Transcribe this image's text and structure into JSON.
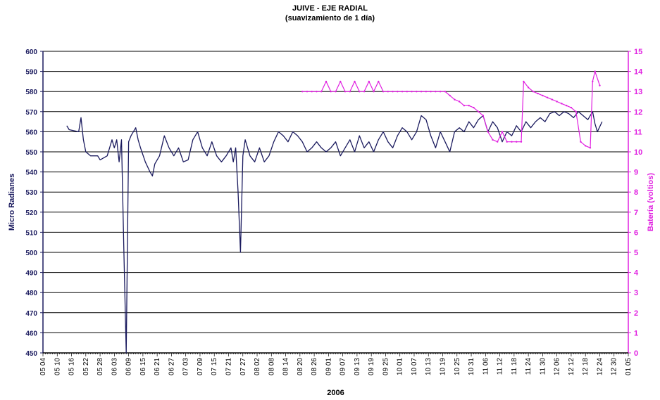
{
  "chart_data": {
    "type": "line",
    "title": "JUIVE - EJE RADIAL",
    "subtitle": "(suavizamiento de 1 día)",
    "xlabel": "2006",
    "ylabel": "Micro Radianes",
    "y2label": "Batería (voltios)",
    "ylim": [
      450,
      600
    ],
    "y2lim": [
      0,
      15
    ],
    "yticks": [
      450,
      460,
      470,
      480,
      490,
      500,
      510,
      520,
      530,
      540,
      550,
      560,
      570,
      580,
      590,
      600
    ],
    "y2ticks": [
      0,
      1,
      2,
      3,
      4,
      5,
      6,
      7,
      8,
      9,
      10,
      11,
      12,
      13,
      14,
      15
    ],
    "x_tick_labels": [
      "05 04",
      "05 10",
      "05 16",
      "05 22",
      "05 28",
      "06 03",
      "06 09",
      "06 15",
      "06 21",
      "06 27",
      "07 03",
      "07 09",
      "07 15",
      "07 21",
      "07 27",
      "08 02",
      "08 08",
      "08 14",
      "08 20",
      "08 26",
      "09 01",
      "09 07",
      "09 13",
      "09 19",
      "09 25",
      "10 01",
      "10 07",
      "10 13",
      "10 19",
      "10 25",
      "10 31",
      "11 06",
      "11 12",
      "11 18",
      "11 24",
      "11 30",
      "12 06",
      "12 12",
      "12 18",
      "12 24",
      "12 30",
      "01 05"
    ],
    "grid": "horizontal",
    "colors": {
      "series": "#1a1a5e",
      "battery": "#e020e0",
      "axis_left": "#1a1a5e",
      "axis_right": "#e020e0"
    },
    "series": [
      {
        "axis": "left",
        "points": [
          [
            "05 14",
            563
          ],
          [
            "05 15",
            561
          ],
          [
            "05 19",
            560
          ],
          [
            "05 20",
            567
          ],
          [
            "05 21",
            556
          ],
          [
            "05 22",
            550
          ],
          [
            "05 24",
            548
          ],
          [
            "05 27",
            548
          ],
          [
            "05 28",
            546
          ],
          [
            "05 31",
            548
          ],
          [
            "06 01",
            552
          ],
          [
            "06 02",
            556
          ],
          [
            "06 03",
            552
          ],
          [
            "06 04",
            556
          ],
          [
            "06 05",
            545
          ],
          [
            "06 06",
            556
          ],
          [
            "06 07",
            500
          ],
          [
            "06 08",
            450
          ],
          [
            "06 09",
            555
          ],
          [
            "06 10",
            558
          ],
          [
            "06 12",
            562
          ],
          [
            "06 13",
            556
          ],
          [
            "06 14",
            552
          ],
          [
            "06 16",
            545
          ],
          [
            "06 18",
            540
          ],
          [
            "06 19",
            538
          ],
          [
            "06 20",
            544
          ],
          [
            "06 22",
            548
          ],
          [
            "06 24",
            558
          ],
          [
            "06 26",
            552
          ],
          [
            "06 28",
            548
          ],
          [
            "06 30",
            552
          ],
          [
            "07 02",
            545
          ],
          [
            "07 04",
            546
          ],
          [
            "07 06",
            556
          ],
          [
            "07 08",
            560
          ],
          [
            "07 10",
            552
          ],
          [
            "07 12",
            548
          ],
          [
            "07 14",
            555
          ],
          [
            "07 16",
            548
          ],
          [
            "07 18",
            545
          ],
          [
            "07 20",
            548
          ],
          [
            "07 22",
            552
          ],
          [
            "07 23",
            545
          ],
          [
            "07 24",
            552
          ],
          [
            "07 25",
            530
          ],
          [
            "07 26",
            500
          ],
          [
            "07 27",
            548
          ],
          [
            "07 28",
            556
          ],
          [
            "07 30",
            548
          ],
          [
            "08 01",
            545
          ],
          [
            "08 03",
            552
          ],
          [
            "08 05",
            545
          ],
          [
            "08 07",
            548
          ],
          [
            "08 09",
            555
          ],
          [
            "08 11",
            560
          ],
          [
            "08 13",
            558
          ],
          [
            "08 15",
            555
          ],
          [
            "08 17",
            560
          ],
          [
            "08 19",
            558
          ],
          [
            "08 21",
            555
          ],
          [
            "08 23",
            550
          ],
          [
            "08 25",
            552
          ],
          [
            "08 27",
            555
          ],
          [
            "08 29",
            552
          ],
          [
            "08 31",
            550
          ],
          [
            "09 02",
            552
          ],
          [
            "09 04",
            555
          ],
          [
            "09 06",
            548
          ],
          [
            "09 08",
            552
          ],
          [
            "09 10",
            556
          ],
          [
            "09 12",
            550
          ],
          [
            "09 14",
            558
          ],
          [
            "09 16",
            552
          ],
          [
            "09 18",
            555
          ],
          [
            "09 20",
            550
          ],
          [
            "09 22",
            556
          ],
          [
            "09 24",
            560
          ],
          [
            "09 26",
            555
          ],
          [
            "09 28",
            552
          ],
          [
            "09 30",
            558
          ],
          [
            "10 02",
            562
          ],
          [
            "10 04",
            560
          ],
          [
            "10 06",
            556
          ],
          [
            "10 08",
            560
          ],
          [
            "10 10",
            568
          ],
          [
            "10 12",
            566
          ],
          [
            "10 14",
            558
          ],
          [
            "10 16",
            552
          ],
          [
            "10 18",
            560
          ],
          [
            "10 20",
            555
          ],
          [
            "10 22",
            550
          ],
          [
            "10 24",
            560
          ],
          [
            "10 26",
            562
          ],
          [
            "10 28",
            560
          ],
          [
            "10 30",
            565
          ],
          [
            "11 01",
            562
          ],
          [
            "11 03",
            566
          ],
          [
            "11 05",
            568
          ],
          [
            "11 07",
            560
          ],
          [
            "11 09",
            565
          ],
          [
            "11 11",
            562
          ],
          [
            "11 13",
            555
          ],
          [
            "11 15",
            560
          ],
          [
            "11 17",
            558
          ],
          [
            "11 19",
            563
          ],
          [
            "11 21",
            560
          ],
          [
            "11 23",
            565
          ],
          [
            "11 25",
            562
          ],
          [
            "11 27",
            565
          ],
          [
            "11 29",
            567
          ],
          [
            "12 01",
            565
          ],
          [
            "12 03",
            569
          ],
          [
            "12 05",
            570
          ],
          [
            "12 07",
            568
          ],
          [
            "12 09",
            570
          ],
          [
            "12 11",
            569
          ],
          [
            "12 13",
            567
          ],
          [
            "12 15",
            570
          ],
          [
            "12 17",
            568
          ],
          [
            "12 19",
            566
          ],
          [
            "12 21",
            570
          ],
          [
            "12 22",
            564
          ],
          [
            "12 23",
            560
          ],
          [
            "12 25",
            565
          ]
        ]
      },
      {
        "axis": "right",
        "points": [
          [
            "08 21",
            13
          ],
          [
            "08 23",
            13
          ],
          [
            "08 25",
            13
          ],
          [
            "08 27",
            13
          ],
          [
            "08 29",
            13
          ],
          [
            "08 31",
            13.5
          ],
          [
            "09 02",
            13
          ],
          [
            "09 04",
            13
          ],
          [
            "09 06",
            13.5
          ],
          [
            "09 08",
            13
          ],
          [
            "09 10",
            13
          ],
          [
            "09 12",
            13.5
          ],
          [
            "09 14",
            13
          ],
          [
            "09 16",
            13
          ],
          [
            "09 18",
            13.5
          ],
          [
            "09 20",
            13
          ],
          [
            "09 22",
            13.5
          ],
          [
            "09 24",
            13
          ],
          [
            "09 26",
            13
          ],
          [
            "09 28",
            13
          ],
          [
            "09 30",
            13
          ],
          [
            "10 02",
            13
          ],
          [
            "10 04",
            13
          ],
          [
            "10 06",
            13
          ],
          [
            "10 08",
            13
          ],
          [
            "10 10",
            13
          ],
          [
            "10 12",
            13
          ],
          [
            "10 14",
            13
          ],
          [
            "10 16",
            13
          ],
          [
            "10 18",
            13
          ],
          [
            "10 20",
            13
          ],
          [
            "10 22",
            12.8
          ],
          [
            "10 24",
            12.6
          ],
          [
            "10 26",
            12.5
          ],
          [
            "10 28",
            12.3
          ],
          [
            "10 30",
            12.3
          ],
          [
            "11 01",
            12.2
          ],
          [
            "11 03",
            12.0
          ],
          [
            "11 05",
            11.8
          ],
          [
            "11 07",
            11
          ],
          [
            "11 09",
            10.6
          ],
          [
            "11 11",
            10.5
          ],
          [
            "11 13",
            11
          ],
          [
            "11 15",
            10.5
          ],
          [
            "11 17",
            10.5
          ],
          [
            "11 19",
            10.5
          ],
          [
            "11 21",
            10.5
          ],
          [
            "11 22",
            13.5
          ],
          [
            "11 24",
            13.2
          ],
          [
            "11 26",
            13.0
          ],
          [
            "11 28",
            12.9
          ],
          [
            "11 30",
            12.8
          ],
          [
            "12 02",
            12.7
          ],
          [
            "12 04",
            12.6
          ],
          [
            "12 06",
            12.5
          ],
          [
            "12 08",
            12.4
          ],
          [
            "12 10",
            12.3
          ],
          [
            "12 12",
            12.2
          ],
          [
            "12 14",
            12.0
          ],
          [
            "12 16",
            10.5
          ],
          [
            "12 18",
            10.3
          ],
          [
            "12 20",
            10.2
          ],
          [
            "12 21",
            13.5
          ],
          [
            "12 22",
            14
          ],
          [
            "12 24",
            13.3
          ]
        ]
      }
    ]
  }
}
